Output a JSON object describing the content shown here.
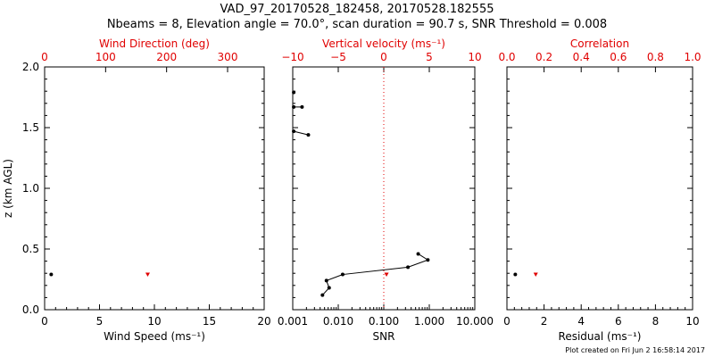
{
  "title": "VAD_97_20170528_182458, 20170528.182555",
  "subtitle": "Nbeams = 8, Elevation angle = 70.0°, scan duration = 90.7 s, SNR Threshold = 0.008",
  "footer": "Plot created on Fri Jun  2 16:58:14 2017",
  "colors": {
    "axis": "#000000",
    "secondary": "#e00000",
    "dotted_line": "#e00000"
  },
  "chart_data": [
    {
      "type": "scatter",
      "ylabel": "z (km AGL)",
      "ylim": [
        0,
        2
      ],
      "yticks": [
        "0.0",
        "0.5",
        "1.0",
        "1.5",
        "2.0"
      ],
      "xlabel": "Wind Speed (ms⁻¹)",
      "xlim": [
        0,
        20
      ],
      "xticks": [
        "0",
        "5",
        "10",
        "15",
        "20"
      ],
      "x2label": "Wind Direction (deg)",
      "x2lim": [
        0,
        360
      ],
      "x2ticks": [
        "0",
        "100",
        "200",
        "300"
      ],
      "series": [
        {
          "axis": "bottom",
          "color": "#000000",
          "points": [
            [
              0.6,
              0.29
            ]
          ]
        },
        {
          "axis": "top",
          "color": "#e00000",
          "points": [
            [
              169,
              0.29
            ]
          ]
        }
      ]
    },
    {
      "type": "line",
      "xlabel": "SNR",
      "xscale": "log",
      "xlim": [
        0.001,
        10
      ],
      "xticks": [
        "0.001",
        "0.010",
        "0.100",
        "1.000",
        "10.000"
      ],
      "x2label": "Vertical velocity (ms⁻¹)",
      "x2lim": [
        -10,
        10
      ],
      "x2ticks": [
        "−10",
        "−5",
        "0",
        "5",
        "10"
      ],
      "reference_line_x2": 0,
      "series": [
        {
          "axis": "bottom",
          "color": "#000000",
          "connected": true,
          "points": [
            [
              0.0045,
              0.12
            ],
            [
              0.0063,
              0.18
            ],
            [
              0.0055,
              0.24
            ],
            [
              0.0125,
              0.29
            ],
            [
              0.34,
              0.35
            ],
            [
              0.93,
              0.41
            ],
            [
              0.57,
              0.46
            ]
          ]
        },
        {
          "axis": "bottom",
          "color": "#000000",
          "connected": true,
          "points": [
            [
              0.00105,
              1.47
            ],
            [
              0.0022,
              1.44
            ]
          ]
        },
        {
          "axis": "bottom",
          "color": "#000000",
          "connected": true,
          "points": [
            [
              0.00105,
              1.67
            ],
            [
              0.0016,
              1.67
            ]
          ]
        },
        {
          "axis": "bottom",
          "color": "#000000",
          "connected": false,
          "points": [
            [
              0.00105,
              1.79
            ]
          ]
        },
        {
          "axis": "top",
          "color": "#e00000",
          "connected": false,
          "points": [
            [
              0.3,
              0.29
            ]
          ]
        }
      ]
    },
    {
      "type": "scatter",
      "xlabel": "Residual (ms⁻¹)",
      "xlim": [
        0,
        10
      ],
      "xticks": [
        "0",
        "2",
        "4",
        "6",
        "8",
        "10"
      ],
      "x2label": "Correlation",
      "x2lim": [
        0,
        1
      ],
      "x2ticks": [
        "0.0",
        "0.2",
        "0.4",
        "0.6",
        "0.8",
        "1.0"
      ],
      "series": [
        {
          "axis": "bottom",
          "color": "#000000",
          "points": [
            [
              0.45,
              0.29
            ]
          ]
        },
        {
          "axis": "top",
          "color": "#e00000",
          "points": [
            [
              0.155,
              0.29
            ]
          ]
        }
      ]
    }
  ]
}
